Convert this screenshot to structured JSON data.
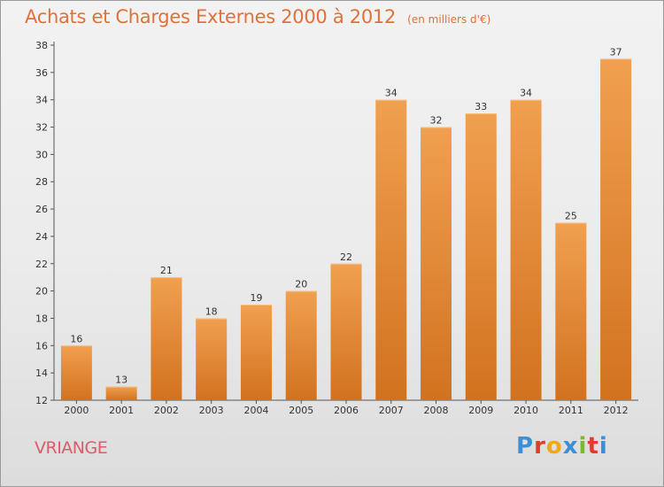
{
  "chart_data": {
    "type": "bar",
    "title": "Achats et Charges Externes 2000 à 2012",
    "unit_note": "(en milliers d'€)",
    "categories": [
      "2000",
      "2001",
      "2002",
      "2003",
      "2004",
      "2005",
      "2006",
      "2007",
      "2008",
      "2009",
      "2010",
      "2011",
      "2012"
    ],
    "values": [
      16,
      13,
      21,
      18,
      19,
      20,
      22,
      34,
      32,
      33,
      34,
      25,
      37
    ],
    "ylim": [
      12,
      38
    ],
    "yticks": [
      12,
      14,
      16,
      18,
      20,
      22,
      24,
      26,
      28,
      30,
      32,
      34,
      36,
      38
    ],
    "grid": false,
    "data_labels": true,
    "bar_color": "#f0a050",
    "bar_color_dark": "#d2721f"
  },
  "footer": {
    "place": "VRIANGE",
    "brand_letters": [
      "P",
      "r",
      "o",
      "x",
      "i",
      "t",
      "i"
    ],
    "brand_colors": [
      "#3a8fd8",
      "#e23a2d",
      "#f2a61a",
      "#3a8fd8",
      "#7cb82f",
      "#e23a2d",
      "#3a8fd8"
    ]
  }
}
